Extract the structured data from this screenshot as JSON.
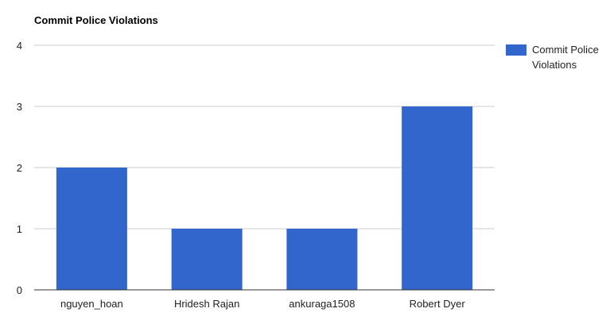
{
  "chart_data": {
    "type": "bar",
    "title": "Commit Police Violations",
    "categories": [
      "nguyen_hoan",
      "Hridesh Rajan",
      "ankuraga1508",
      "Robert Dyer"
    ],
    "series": [
      {
        "name": "Commit Police Violations",
        "values": [
          2,
          1,
          1,
          3
        ],
        "color": "#3366cc"
      }
    ],
    "ylim": [
      0,
      4
    ],
    "yticks": [
      "0",
      "1",
      "2",
      "3",
      "4"
    ],
    "grid": true,
    "legend": {
      "position": "right",
      "lines": [
        "Commit Police",
        "Violations"
      ]
    },
    "colors": {
      "grid": "#cccccc",
      "axis": "#333333",
      "text": "#222222"
    }
  }
}
